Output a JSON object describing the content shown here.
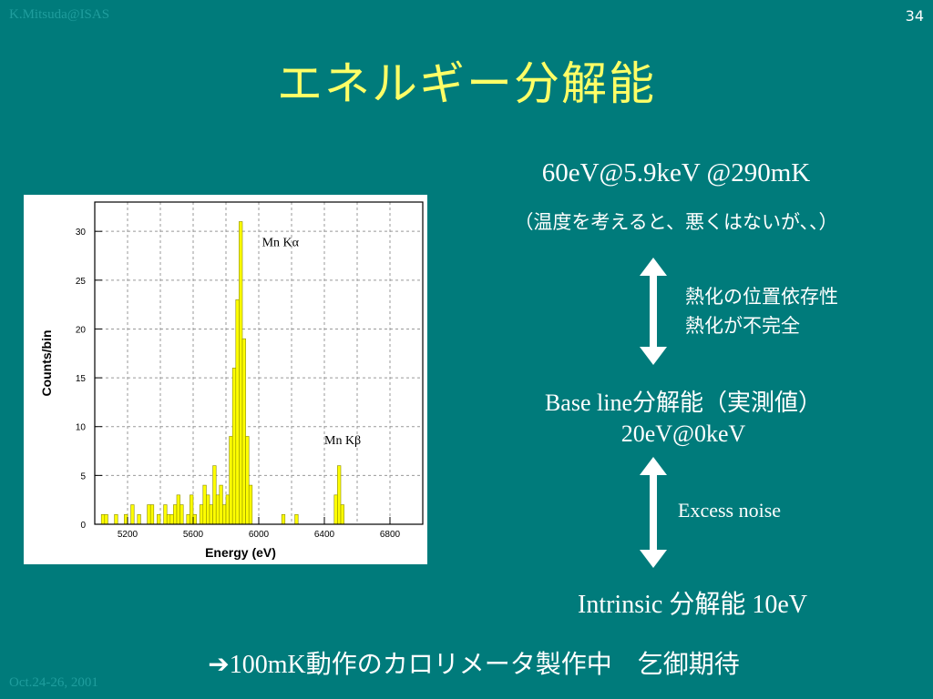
{
  "slide": {
    "author": "K.Mitsuda@ISAS",
    "page_number": "34",
    "date": "Oct.24-26, 2001",
    "title": "エネルギー分解能"
  },
  "content": {
    "resolution_main": "60eV@5.9keV @290mK",
    "resolution_note": "（温度を考えると、悪くはないが、、）",
    "thermalization_effects": [
      "熱化の位置依存性",
      "熱化が不完全"
    ],
    "baseline_label_en": "Base line",
    "baseline_label_jp": "分解能（実測値）",
    "baseline_value": "20eV@0keV",
    "excess_noise": "Excess noise",
    "intrinsic_en": "Intrinsic ",
    "intrinsic_jp": "分解能",
    "intrinsic_value": " 10eV",
    "footer_arrow": "➔",
    "footer_text_en": "100mK",
    "footer_text_jp": "動作のカロリメータ製作中　乞御期待"
  },
  "colors": {
    "background": "#007b7b",
    "title": "#ffff66",
    "text": "#ffffff",
    "histogram_fill": "#ffff00"
  },
  "chart_data": {
    "type": "bar",
    "xlabel": "Energy (eV)",
    "ylabel": "Counts/bin",
    "xlim": [
      5000,
      7000
    ],
    "ylim": [
      0,
      33
    ],
    "x_ticks": [
      "5200",
      "5600",
      "6000",
      "6400",
      "6800"
    ],
    "y_ticks": [
      "0",
      "5",
      "10",
      "15",
      "20",
      "25",
      "30"
    ],
    "grid": true,
    "annotations": [
      {
        "text": "Mn Kα",
        "x": 6020,
        "y": 28.5
      },
      {
        "text": "Mn Kβ",
        "x": 6400,
        "y": 8.2
      }
    ],
    "bin_width": 20,
    "bins": [
      {
        "x": 5040,
        "y": 1
      },
      {
        "x": 5060,
        "y": 1
      },
      {
        "x": 5120,
        "y": 1
      },
      {
        "x": 5180,
        "y": 1
      },
      {
        "x": 5220,
        "y": 2
      },
      {
        "x": 5260,
        "y": 1
      },
      {
        "x": 5320,
        "y": 2
      },
      {
        "x": 5340,
        "y": 2
      },
      {
        "x": 5380,
        "y": 1
      },
      {
        "x": 5420,
        "y": 2
      },
      {
        "x": 5440,
        "y": 1
      },
      {
        "x": 5460,
        "y": 1
      },
      {
        "x": 5480,
        "y": 2
      },
      {
        "x": 5500,
        "y": 3
      },
      {
        "x": 5520,
        "y": 2
      },
      {
        "x": 5560,
        "y": 1
      },
      {
        "x": 5580,
        "y": 3
      },
      {
        "x": 5600,
        "y": 1
      },
      {
        "x": 5640,
        "y": 2
      },
      {
        "x": 5660,
        "y": 4
      },
      {
        "x": 5680,
        "y": 3
      },
      {
        "x": 5700,
        "y": 2
      },
      {
        "x": 5720,
        "y": 6
      },
      {
        "x": 5740,
        "y": 3
      },
      {
        "x": 5760,
        "y": 4
      },
      {
        "x": 5780,
        "y": 2
      },
      {
        "x": 5800,
        "y": 3
      },
      {
        "x": 5820,
        "y": 9
      },
      {
        "x": 5840,
        "y": 16
      },
      {
        "x": 5860,
        "y": 23
      },
      {
        "x": 5880,
        "y": 31
      },
      {
        "x": 5900,
        "y": 19
      },
      {
        "x": 5920,
        "y": 9
      },
      {
        "x": 5940,
        "y": 4
      },
      {
        "x": 6140,
        "y": 1
      },
      {
        "x": 6220,
        "y": 1
      },
      {
        "x": 6460,
        "y": 3
      },
      {
        "x": 6480,
        "y": 6
      },
      {
        "x": 6500,
        "y": 2
      }
    ]
  }
}
